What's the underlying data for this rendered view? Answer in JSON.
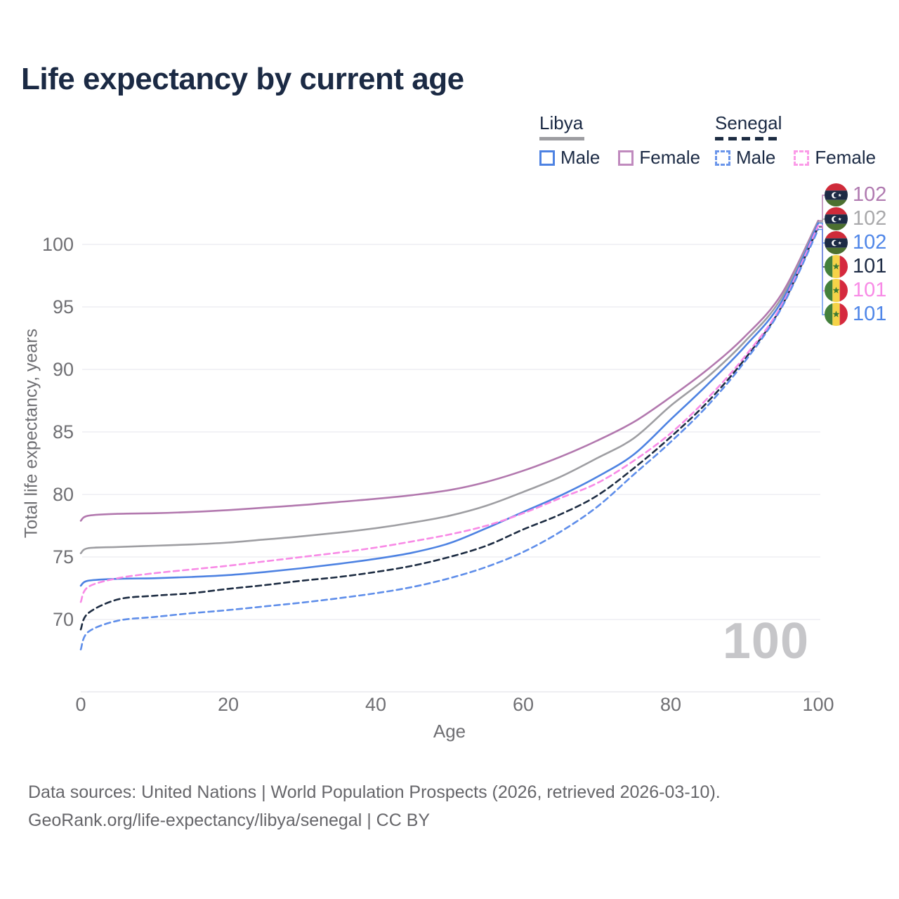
{
  "header": {
    "title": "Life expectancy by current age"
  },
  "legend": {
    "groups": [
      {
        "label": "Libya",
        "line_style": "solid",
        "underline_color": "#9d9da1",
        "items": [
          {
            "label": "Male",
            "color": "#4d82e2"
          },
          {
            "label": "Female",
            "color": "#c08abe"
          }
        ]
      },
      {
        "label": "Senegal",
        "line_style": "dashed",
        "underline_color": "#1d2c42",
        "items": [
          {
            "label": "Male",
            "color": "#6a95ea"
          },
          {
            "label": "Female",
            "color": "#fb9be8"
          }
        ]
      }
    ]
  },
  "axes": {
    "y": {
      "title": "Total life expectancy, years",
      "ticks": [
        "100",
        "95",
        "90",
        "85",
        "80",
        "75",
        "70"
      ]
    },
    "x": {
      "title": "Age",
      "ticks": [
        "0",
        "20",
        "40",
        "60",
        "80",
        "100"
      ]
    }
  },
  "watermark": "100",
  "callouts": [
    {
      "flag": "libya",
      "value": "102",
      "color": "#b07ab0"
    },
    {
      "flag": "libya",
      "value": "102",
      "color": "#a8a8aa"
    },
    {
      "flag": "libya",
      "value": "102",
      "color": "#4f86e8"
    },
    {
      "flag": "senegal",
      "value": "101",
      "color": "#1d2b45"
    },
    {
      "flag": "senegal",
      "value": "101",
      "color": "#f88ae6"
    },
    {
      "flag": "senegal",
      "value": "101",
      "color": "#4f86e8"
    }
  ],
  "footer": {
    "line1": "Data sources: United Nations | World Population Prospects (2026, retrieved 2026-03-10).",
    "line2": "GeoRank.org/life-expectancy/libya/senegal | CC BY"
  },
  "chart_data": {
    "type": "line",
    "title": "Life expectancy by current age",
    "xlabel": "Age",
    "ylabel": "Total life expectancy, years",
    "xlim": [
      0,
      100
    ],
    "ylim": [
      64,
      103
    ],
    "x_ticks": [
      0,
      20,
      40,
      60,
      80,
      100
    ],
    "y_ticks": [
      70,
      75,
      80,
      85,
      90,
      95,
      100
    ],
    "grid": "horizontal",
    "legend_position": "top-right",
    "x": [
      0,
      1,
      5,
      10,
      15,
      20,
      25,
      30,
      35,
      40,
      45,
      50,
      55,
      60,
      65,
      70,
      75,
      80,
      85,
      90,
      95,
      100
    ],
    "series": [
      {
        "name": "Libya Female",
        "country": "Libya",
        "sex": "Female",
        "style": "solid",
        "color": "#b278ae",
        "end_label": "102",
        "values": [
          77.9,
          78.3,
          78.45,
          78.5,
          78.6,
          78.75,
          78.95,
          79.15,
          79.4,
          79.65,
          79.95,
          80.35,
          81.0,
          81.9,
          83.0,
          84.3,
          85.8,
          87.8,
          90.0,
          92.6,
          96.0,
          101.9
        ]
      },
      {
        "name": "Libya Total",
        "country": "Libya",
        "sex": "Both",
        "style": "solid",
        "color": "#9e9ea2",
        "end_label": "102",
        "values": [
          75.3,
          75.7,
          75.8,
          75.9,
          76.0,
          76.15,
          76.4,
          76.65,
          76.95,
          77.3,
          77.75,
          78.3,
          79.1,
          80.2,
          81.4,
          82.9,
          84.5,
          87.1,
          89.4,
          92.2,
          95.7,
          101.8
        ]
      },
      {
        "name": "Libya Male",
        "country": "Libya",
        "sex": "Male",
        "style": "solid",
        "color": "#4d82e2",
        "end_label": "102",
        "values": [
          72.7,
          73.1,
          73.25,
          73.3,
          73.4,
          73.55,
          73.8,
          74.1,
          74.45,
          74.85,
          75.35,
          76.1,
          77.3,
          78.6,
          79.9,
          81.4,
          83.2,
          86.0,
          88.8,
          91.8,
          95.4,
          101.7
        ]
      },
      {
        "name": "Senegal Total",
        "country": "Senegal",
        "sex": "Both",
        "style": "dashed",
        "color": "#1d2c42",
        "end_label": "101",
        "values": [
          69.2,
          70.5,
          71.6,
          71.9,
          72.1,
          72.45,
          72.75,
          73.1,
          73.4,
          73.8,
          74.3,
          75.0,
          75.9,
          77.2,
          78.4,
          79.9,
          82.1,
          84.6,
          87.4,
          90.8,
          95.0,
          101.4
        ]
      },
      {
        "name": "Senegal Female",
        "country": "Senegal",
        "sex": "Female",
        "style": "dashed",
        "color": "#f88ae6",
        "end_label": "101",
        "values": [
          71.4,
          72.6,
          73.3,
          73.7,
          74.0,
          74.3,
          74.65,
          75.0,
          75.35,
          75.75,
          76.25,
          76.8,
          77.5,
          78.5,
          79.7,
          80.9,
          82.7,
          84.9,
          87.7,
          91.0,
          95.1,
          101.5
        ]
      },
      {
        "name": "Senegal Male",
        "country": "Senegal",
        "sex": "Male",
        "style": "dashed",
        "color": "#5f8eea",
        "end_label": "101",
        "values": [
          67.6,
          69.0,
          69.9,
          70.2,
          70.5,
          70.75,
          71.05,
          71.35,
          71.7,
          72.1,
          72.6,
          73.3,
          74.2,
          75.4,
          77.0,
          79.0,
          81.6,
          84.2,
          87.1,
          90.6,
          94.9,
          101.2
        ]
      }
    ]
  }
}
